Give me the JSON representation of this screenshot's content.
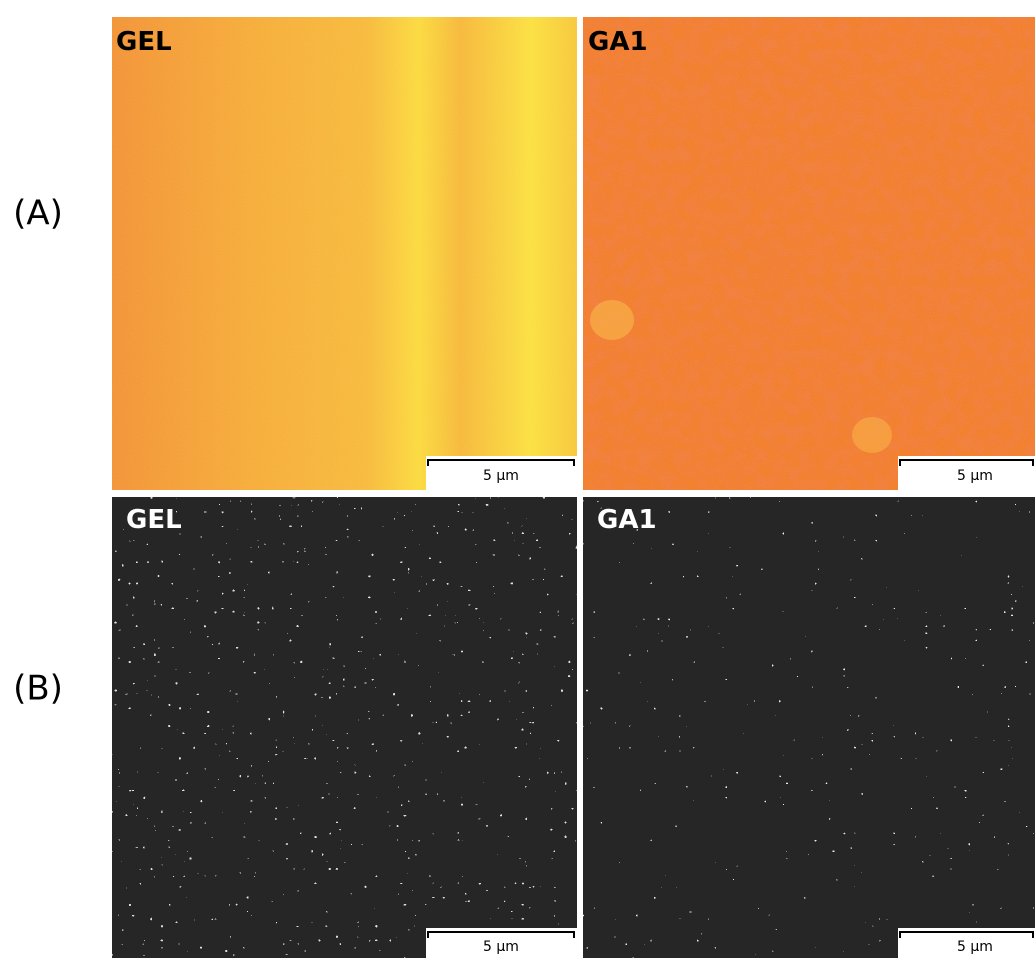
{
  "row_labels": [
    "(A)",
    "(B)"
  ],
  "panels": [
    {
      "label": "GEL",
      "scale_bar": "5 µm"
    },
    {
      "label": "GA1",
      "scale_bar": "5 µm"
    },
    {
      "label": "GEL",
      "scale_bar": "5 µm"
    },
    {
      "label": "GA1",
      "scale_bar": "5 µm"
    }
  ]
}
